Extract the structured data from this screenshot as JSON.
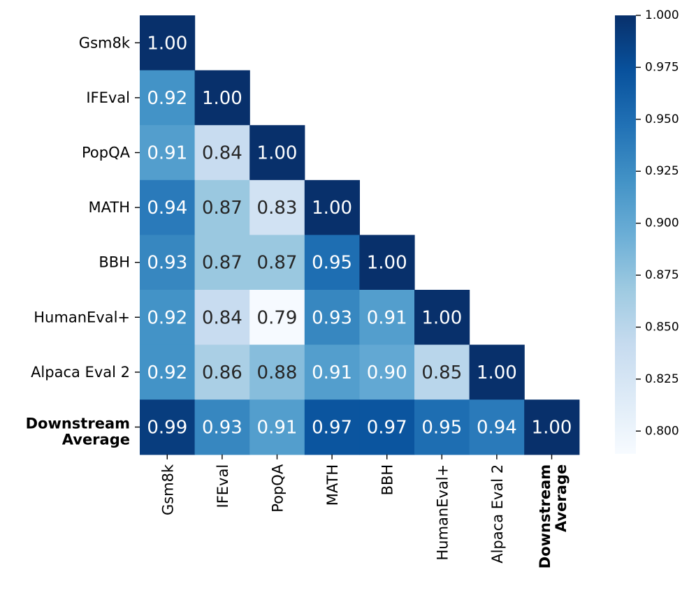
{
  "chart_data": {
    "type": "heatmap",
    "title": "",
    "xlabel": "",
    "ylabel": "",
    "row_labels": [
      "Gsm8k",
      "IFEval",
      "PopQA",
      "MATH",
      "BBH",
      "HumanEval+",
      "Alpaca Eval 2",
      "Downstream Average"
    ],
    "col_labels": [
      "Gsm8k",
      "IFEval",
      "PopQA",
      "MATH",
      "BBH",
      "HumanEval+",
      "Alpaca Eval 2",
      "Downstream Average"
    ],
    "bold_labels": [
      "Downstream Average"
    ],
    "values": [
      [
        1.0,
        null,
        null,
        null,
        null,
        null,
        null,
        null
      ],
      [
        0.92,
        1.0,
        null,
        null,
        null,
        null,
        null,
        null
      ],
      [
        0.91,
        0.84,
        1.0,
        null,
        null,
        null,
        null,
        null
      ],
      [
        0.94,
        0.87,
        0.83,
        1.0,
        null,
        null,
        null,
        null
      ],
      [
        0.93,
        0.87,
        0.87,
        0.95,
        1.0,
        null,
        null,
        null
      ],
      [
        0.92,
        0.84,
        0.79,
        0.93,
        0.91,
        1.0,
        null,
        null
      ],
      [
        0.92,
        0.86,
        0.88,
        0.91,
        0.9,
        0.85,
        1.0,
        null
      ],
      [
        0.99,
        0.93,
        0.91,
        0.97,
        0.97,
        0.95,
        0.94,
        1.0
      ]
    ],
    "value_format": "0.00",
    "colormap": "Blues",
    "colormap_stops": [
      "#f7fbff",
      "#deebf7",
      "#c6dbef",
      "#9ecae1",
      "#6baed6",
      "#4292c6",
      "#2171b5",
      "#08519c",
      "#08306b"
    ],
    "mask": "upper-triangle",
    "colorbar": {
      "range": [
        0.789,
        1.0
      ],
      "ticks": [
        0.8,
        0.825,
        0.85,
        0.875,
        0.9,
        0.925,
        0.95,
        0.975,
        1.0
      ],
      "tick_labels": [
        "0.800",
        "0.825",
        "0.850",
        "0.875",
        "0.900",
        "0.925",
        "0.950",
        "0.975",
        "1.000"
      ]
    },
    "text_colors": {
      "dark": "#262626",
      "light": "#ffffff"
    }
  }
}
